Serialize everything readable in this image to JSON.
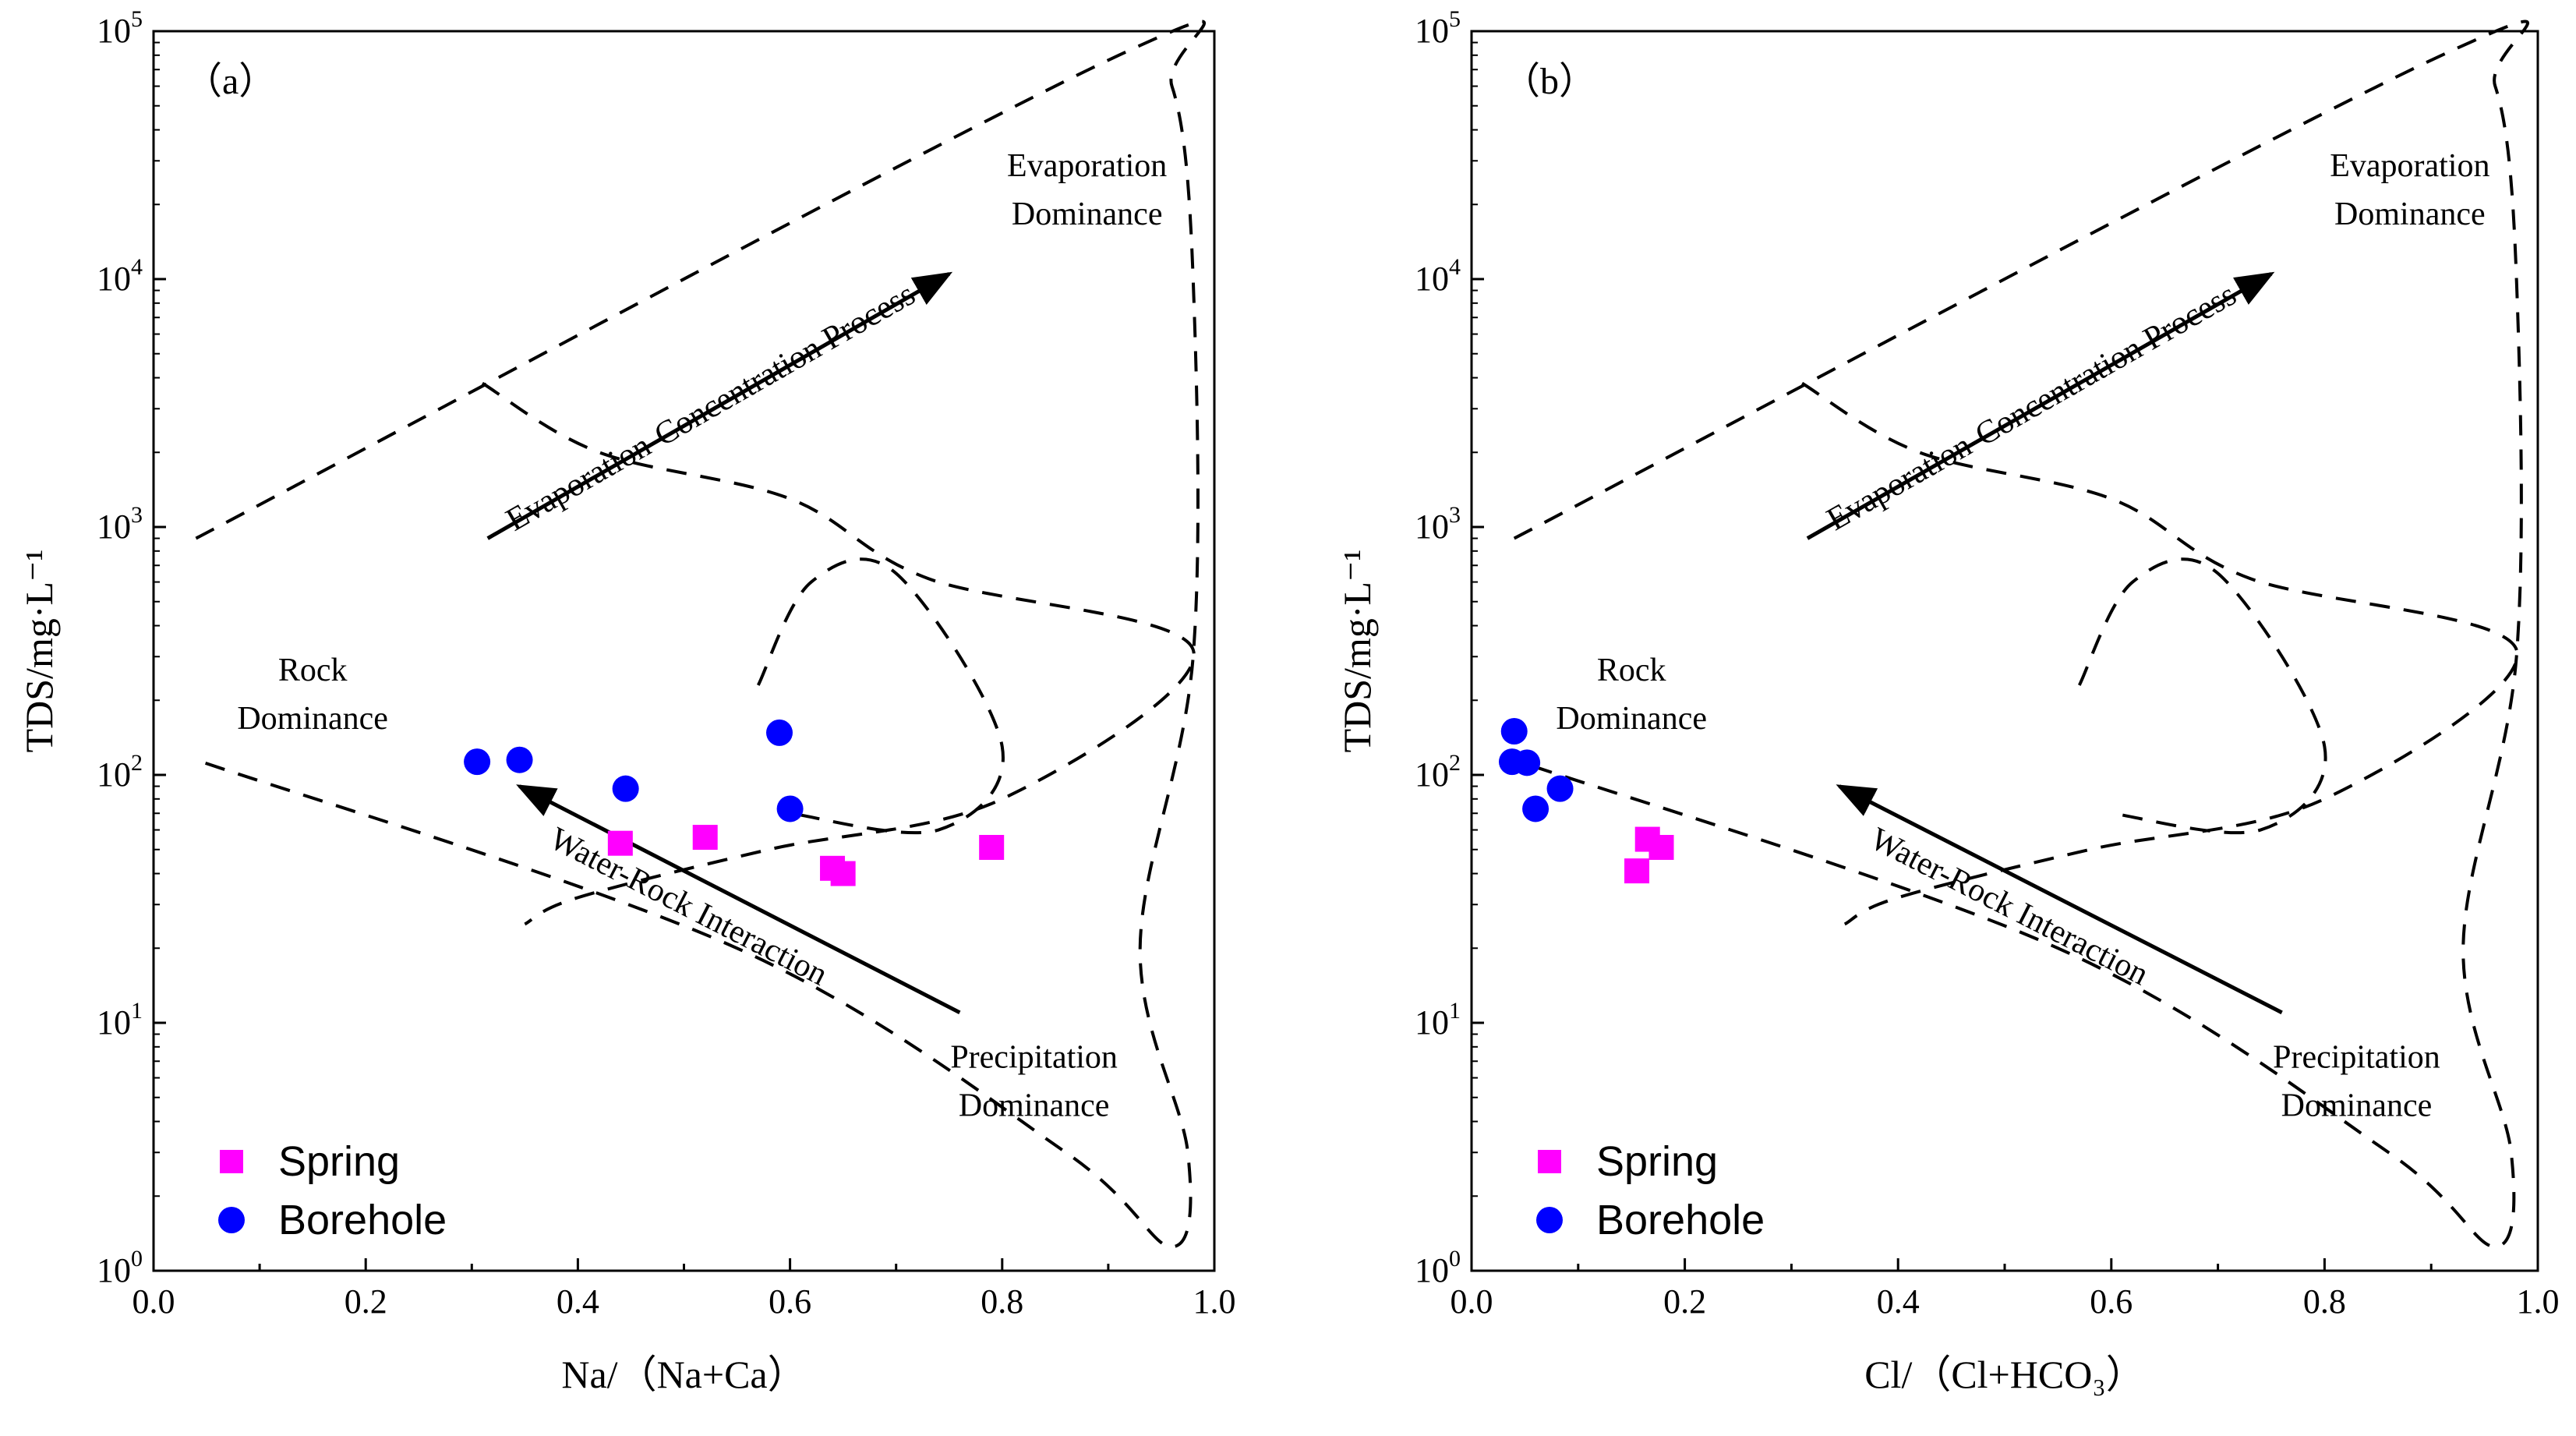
{
  "chart_data": [
    {
      "type": "scatter",
      "panel_label": "（a）",
      "xlabel": "Na/（Na+Ca）",
      "ylabel": "TDS/mg·L⁻¹",
      "xlim": [
        0,
        1
      ],
      "ylim": [
        1,
        100000
      ],
      "yscale": "log",
      "x_ticks": [
        "0.0",
        "0.2",
        "0.4",
        "0.6",
        "0.8",
        "1.0"
      ],
      "y_ticks": [
        {
          "base": "10",
          "exp": "0"
        },
        {
          "base": "10",
          "exp": "1"
        },
        {
          "base": "10",
          "exp": "2"
        },
        {
          "base": "10",
          "exp": "3"
        },
        {
          "base": "10",
          "exp": "4"
        },
        {
          "base": "10",
          "exp": "5"
        }
      ],
      "regions": {
        "evaporation": "Evaporation|Dominance",
        "rock": "Rock|Dominance",
        "precipitation": "Precipitation|Dominance"
      },
      "arrows": {
        "evap_conc": "Evaporation-Concentration Process",
        "water_rock": "Water-Rock Interaction"
      },
      "legend": {
        "spring": "Spring",
        "borehole": "Borehole"
      },
      "series": [
        {
          "name": "Spring",
          "marker": "square",
          "color": "#ff00ff",
          "points": [
            [
              0.44,
              53
            ],
            [
              0.52,
              56
            ],
            [
              0.64,
              42
            ],
            [
              0.65,
              40
            ],
            [
              0.79,
              51
            ]
          ]
        },
        {
          "name": "Borehole",
          "marker": "circle",
          "color": "#0000ff",
          "points": [
            [
              0.305,
              113
            ],
            [
              0.345,
              115
            ],
            [
              0.445,
              88
            ],
            [
              0.59,
              148
            ],
            [
              0.6,
              73
            ]
          ]
        }
      ]
    },
    {
      "type": "scatter",
      "panel_label": "（b）",
      "xlabel": "Cl/（Cl+HCO₃）",
      "ylabel": "TDS/mg·L⁻¹",
      "xlim": [
        0,
        1
      ],
      "ylim": [
        1,
        100000
      ],
      "yscale": "log",
      "x_ticks": [
        "0.0",
        "0.2",
        "0.4",
        "0.6",
        "0.8",
        "1.0"
      ],
      "y_ticks": [
        {
          "base": "10",
          "exp": "0"
        },
        {
          "base": "10",
          "exp": "1"
        },
        {
          "base": "10",
          "exp": "2"
        },
        {
          "base": "10",
          "exp": "3"
        },
        {
          "base": "10",
          "exp": "4"
        },
        {
          "base": "10",
          "exp": "5"
        }
      ],
      "regions": {
        "evaporation": "Evaporation|Dominance",
        "rock": "Rock|Dominance",
        "precipitation": "Precipitation|Dominance"
      },
      "arrows": {
        "evap_conc": "Evaporation-Concentration Process",
        "water_rock": "Water-Rock Interaction"
      },
      "legend": {
        "spring": "Spring",
        "borehole": "Borehole"
      },
      "series": [
        {
          "name": "Spring",
          "marker": "square",
          "color": "#ff00ff",
          "points": [
            [
              0.155,
              41
            ],
            [
              0.165,
              55
            ],
            [
              0.178,
              51
            ]
          ]
        },
        {
          "name": "Borehole",
          "marker": "circle",
          "color": "#0000ff",
          "points": [
            [
              0.04,
              150
            ],
            [
              0.038,
              113
            ],
            [
              0.052,
              112
            ],
            [
              0.06,
              73
            ],
            [
              0.083,
              88
            ]
          ]
        }
      ]
    }
  ]
}
